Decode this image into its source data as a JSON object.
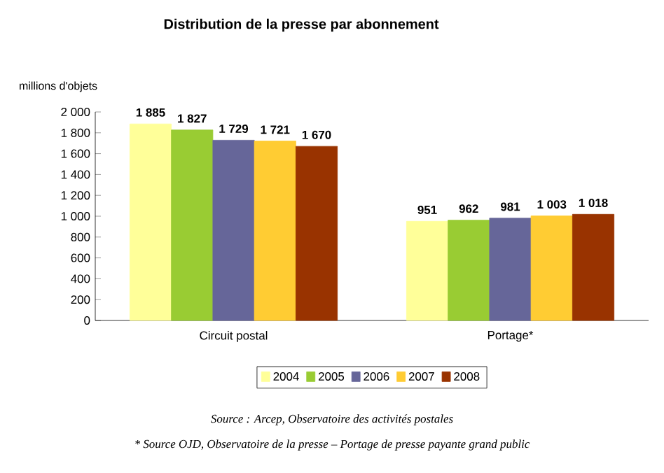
{
  "chart_data": {
    "type": "bar",
    "title": "Distribution de la presse par abonnement",
    "ylabel": "millions d'objets",
    "categories": [
      "Circuit postal",
      "Portage*"
    ],
    "series": [
      {
        "name": "2004",
        "color": "#ffff99",
        "values": [
          1885,
          951
        ],
        "value_labels": [
          "1 885",
          "951"
        ]
      },
      {
        "name": "2005",
        "color": "#99cc33",
        "values": [
          1827,
          962
        ],
        "value_labels": [
          "1 827",
          "962"
        ]
      },
      {
        "name": "2006",
        "color": "#666699",
        "values": [
          1729,
          981
        ],
        "value_labels": [
          "1 729",
          "981"
        ]
      },
      {
        "name": "2007",
        "color": "#ffcc33",
        "values": [
          1721,
          1003
        ],
        "value_labels": [
          "1 721",
          "1 003"
        ]
      },
      {
        "name": "2008",
        "color": "#993300",
        "values": [
          1670,
          1018
        ],
        "value_labels": [
          "1 670",
          "1 018"
        ]
      }
    ],
    "ylim": [
      0,
      2000
    ],
    "yticks": [
      0,
      200,
      400,
      600,
      800,
      {
        "value": 1000,
        "label": "1 000"
      },
      {
        "value": 1200,
        "label": "1 200"
      },
      {
        "value": 1400,
        "label": "1 400"
      },
      {
        "value": 1600,
        "label": "1 600"
      },
      {
        "value": 1800,
        "label": "1 800"
      },
      {
        "value": 2000,
        "label": "2 000"
      }
    ],
    "legend": "bottom",
    "annotations": [
      "Source : Arcep, Observatoire des activités postales",
      "* Source OJD, Observatoire de la presse – Portage de presse payante grand public"
    ]
  }
}
